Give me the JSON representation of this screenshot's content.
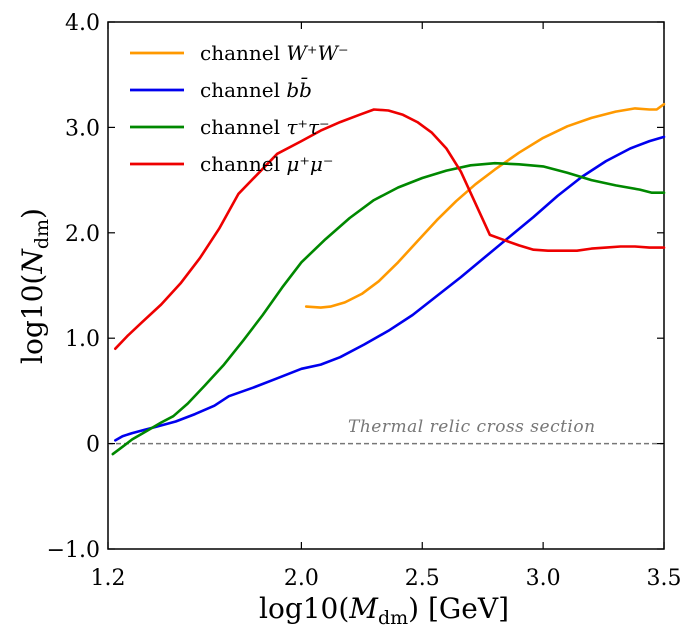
{
  "chart_data": {
    "type": "line",
    "xlabel": "log10(M_dm) [GeV]",
    "ylabel": "log10(N_dm)",
    "xlim": [
      1.2,
      3.5
    ],
    "ylim": [
      -1.0,
      4.0
    ],
    "x_ticks": [
      {
        "value": 1.2,
        "label": "1.2"
      },
      {
        "value": 2.0,
        "label": "2.0"
      },
      {
        "value": 2.5,
        "label": "2.5"
      },
      {
        "value": 3.0,
        "label": "3.0"
      },
      {
        "value": 3.5,
        "label": "3.5"
      }
    ],
    "y_ticks": [
      {
        "value": -1.0,
        "label": "−1.0"
      },
      {
        "value": 0.0,
        "label": "0"
      },
      {
        "value": 1.0,
        "label": "1.0"
      },
      {
        "value": 2.0,
        "label": "2.0"
      },
      {
        "value": 3.0,
        "label": "3.0"
      },
      {
        "value": 4.0,
        "label": "4.0"
      }
    ],
    "legend_position": "top-left",
    "series": [
      {
        "name": "channel W+W-",
        "label_prefix": "channel",
        "label_math": "W⁺W⁻",
        "color": "#ff9900",
        "points": [
          [
            2.02,
            1.3
          ],
          [
            2.08,
            1.29
          ],
          [
            2.12,
            1.3
          ],
          [
            2.18,
            1.34
          ],
          [
            2.25,
            1.42
          ],
          [
            2.32,
            1.54
          ],
          [
            2.4,
            1.72
          ],
          [
            2.48,
            1.92
          ],
          [
            2.56,
            2.12
          ],
          [
            2.64,
            2.3
          ],
          [
            2.72,
            2.46
          ],
          [
            2.8,
            2.6
          ],
          [
            2.9,
            2.76
          ],
          [
            3.0,
            2.9
          ],
          [
            3.1,
            3.01
          ],
          [
            3.2,
            3.09
          ],
          [
            3.3,
            3.15
          ],
          [
            3.38,
            3.18
          ],
          [
            3.44,
            3.17
          ],
          [
            3.47,
            3.17
          ],
          [
            3.5,
            3.22
          ]
        ]
      },
      {
        "name": "channel bb̄",
        "label_prefix": "channel",
        "label_math": "bb̄",
        "color": "#0000ee",
        "points": [
          [
            1.23,
            0.03
          ],
          [
            1.26,
            0.07
          ],
          [
            1.3,
            0.1
          ],
          [
            1.35,
            0.13
          ],
          [
            1.4,
            0.16
          ],
          [
            1.48,
            0.21
          ],
          [
            1.56,
            0.28
          ],
          [
            1.64,
            0.36
          ],
          [
            1.7,
            0.45
          ],
          [
            1.8,
            0.53
          ],
          [
            1.9,
            0.62
          ],
          [
            2.0,
            0.71
          ],
          [
            2.08,
            0.75
          ],
          [
            2.16,
            0.82
          ],
          [
            2.26,
            0.94
          ],
          [
            2.36,
            1.07
          ],
          [
            2.46,
            1.22
          ],
          [
            2.56,
            1.4
          ],
          [
            2.66,
            1.58
          ],
          [
            2.76,
            1.77
          ],
          [
            2.86,
            1.96
          ],
          [
            2.96,
            2.15
          ],
          [
            3.06,
            2.35
          ],
          [
            3.16,
            2.53
          ],
          [
            3.26,
            2.68
          ],
          [
            3.36,
            2.8
          ],
          [
            3.44,
            2.87
          ],
          [
            3.5,
            2.91
          ]
        ]
      },
      {
        "name": "channel τ+τ-",
        "label_prefix": "channel",
        "label_math": "τ⁺τ⁻",
        "color": "#008800",
        "points": [
          [
            1.22,
            -0.1
          ],
          [
            1.26,
            -0.03
          ],
          [
            1.3,
            0.04
          ],
          [
            1.36,
            0.12
          ],
          [
            1.42,
            0.2
          ],
          [
            1.47,
            0.26
          ],
          [
            1.53,
            0.38
          ],
          [
            1.6,
            0.55
          ],
          [
            1.68,
            0.75
          ],
          [
            1.76,
            0.98
          ],
          [
            1.84,
            1.22
          ],
          [
            1.92,
            1.48
          ],
          [
            2.0,
            1.72
          ],
          [
            2.1,
            1.94
          ],
          [
            2.2,
            2.14
          ],
          [
            2.3,
            2.31
          ],
          [
            2.4,
            2.43
          ],
          [
            2.5,
            2.52
          ],
          [
            2.6,
            2.59
          ],
          [
            2.7,
            2.64
          ],
          [
            2.8,
            2.66
          ],
          [
            2.9,
            2.65
          ],
          [
            3.0,
            2.63
          ],
          [
            3.1,
            2.57
          ],
          [
            3.2,
            2.5
          ],
          [
            3.3,
            2.45
          ],
          [
            3.4,
            2.41
          ],
          [
            3.45,
            2.38
          ],
          [
            3.5,
            2.38
          ]
        ]
      },
      {
        "name": "channel μ+μ-",
        "label_prefix": "channel",
        "label_math": "μ⁺μ⁻",
        "color": "#ee0000",
        "points": [
          [
            1.23,
            0.9
          ],
          [
            1.28,
            1.02
          ],
          [
            1.34,
            1.15
          ],
          [
            1.42,
            1.32
          ],
          [
            1.5,
            1.52
          ],
          [
            1.58,
            1.76
          ],
          [
            1.66,
            2.04
          ],
          [
            1.74,
            2.37
          ],
          [
            1.82,
            2.56
          ],
          [
            1.9,
            2.75
          ],
          [
            2.0,
            2.87
          ],
          [
            2.08,
            2.97
          ],
          [
            2.16,
            3.05
          ],
          [
            2.24,
            3.12
          ],
          [
            2.3,
            3.17
          ],
          [
            2.36,
            3.16
          ],
          [
            2.42,
            3.12
          ],
          [
            2.48,
            3.05
          ],
          [
            2.54,
            2.95
          ],
          [
            2.6,
            2.8
          ],
          [
            2.66,
            2.58
          ],
          [
            2.72,
            2.28
          ],
          [
            2.78,
            1.98
          ],
          [
            2.84,
            1.93
          ],
          [
            2.9,
            1.88
          ],
          [
            2.96,
            1.84
          ],
          [
            3.02,
            1.83
          ],
          [
            3.08,
            1.83
          ],
          [
            3.14,
            1.83
          ],
          [
            3.2,
            1.85
          ],
          [
            3.26,
            1.86
          ],
          [
            3.32,
            1.87
          ],
          [
            3.38,
            1.87
          ],
          [
            3.44,
            1.86
          ],
          [
            3.5,
            1.86
          ]
        ]
      }
    ],
    "reference_line": {
      "value": 0.0,
      "label": "Thermal relic cross section",
      "color": "#777777",
      "style": "dashed"
    }
  }
}
